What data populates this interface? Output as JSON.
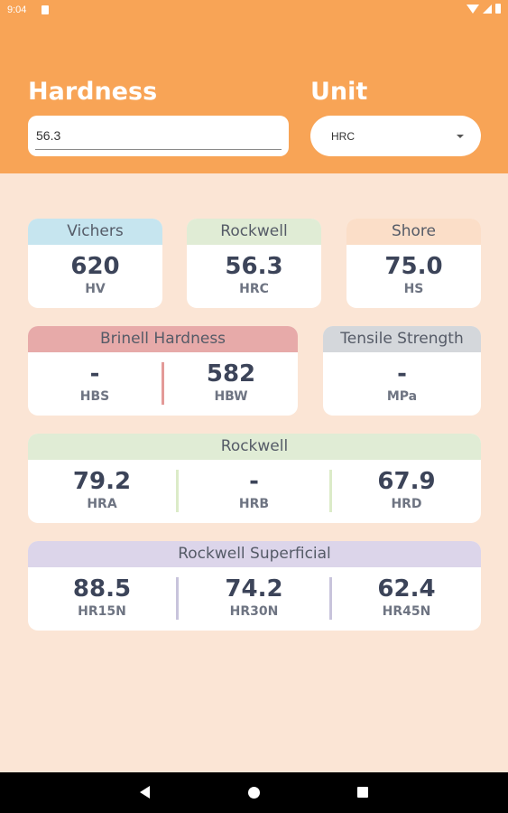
{
  "status_bar": {
    "time": "9:04"
  },
  "header": {
    "hardness_label": "Hardness",
    "hardness_value": "56.3",
    "unit_label": "Unit",
    "unit_value": "HRC"
  },
  "colors": {
    "header": "#f8a456",
    "background": "#fbe5d5",
    "vichers": "#c6e5ef",
    "rockwell": "#e0ecd5",
    "shore": "#fbdec8",
    "brinell": "#e7aaa9",
    "tensile": "#d4d7db",
    "superficial": "#dcd5ea"
  },
  "cards": {
    "vichers": {
      "title": "Vichers",
      "value": "620",
      "unit": "HV"
    },
    "rockwell_c": {
      "title": "Rockwell",
      "value": "56.3",
      "unit": "HRC"
    },
    "shore": {
      "title": "Shore",
      "value": "75.0",
      "unit": "HS"
    },
    "brinell": {
      "title": "Brinell Hardness",
      "hbs_value": "-",
      "hbs_unit": "HBS",
      "hbw_value": "582",
      "hbw_unit": "HBW"
    },
    "tensile": {
      "title": "Tensile Strength",
      "value": "-",
      "unit": "MPa"
    },
    "rockwell_group": {
      "title": "Rockwell",
      "hra_value": "79.2",
      "hra_unit": "HRA",
      "hrb_value": "-",
      "hrb_unit": "HRB",
      "hrd_value": "67.9",
      "hrd_unit": "HRD"
    },
    "superficial": {
      "title": "Rockwell Superficial",
      "hr15n_value": "88.5",
      "hr15n_unit": "HR15N",
      "hr30n_value": "74.2",
      "hr30n_unit": "HR30N",
      "hr45n_value": "62.4",
      "hr45n_unit": "HR45N"
    }
  }
}
